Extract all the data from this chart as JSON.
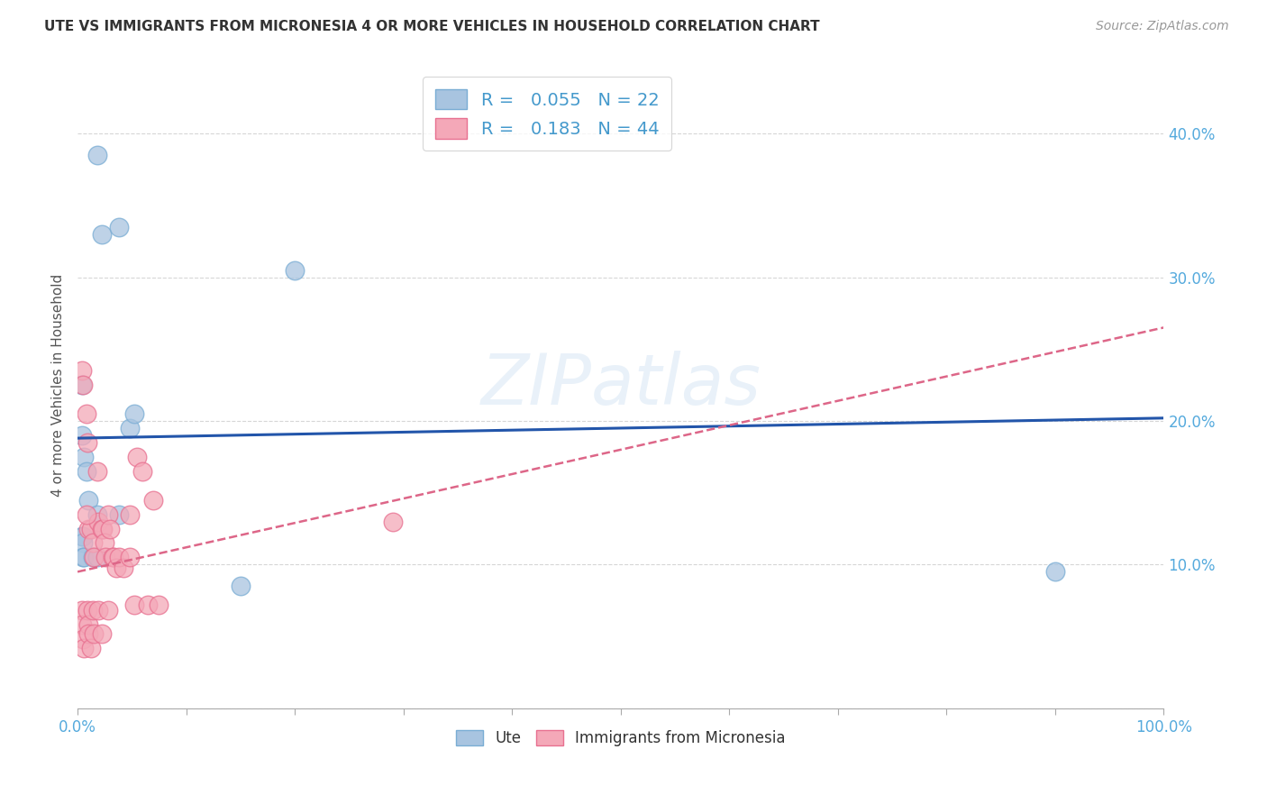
{
  "title": "UTE VS IMMIGRANTS FROM MICRONESIA 4 OR MORE VEHICLES IN HOUSEHOLD CORRELATION CHART",
  "source": "Source: ZipAtlas.com",
  "ylabel": "4 or more Vehicles in Household",
  "watermark": "ZIPatlas",
  "xlim": [
    0.0,
    1.0
  ],
  "ylim": [
    0.0,
    0.45
  ],
  "legend_ute_R": "0.055",
  "legend_ute_N": "22",
  "legend_micro_R": "0.183",
  "legend_micro_N": "44",
  "ute_color": "#a8c4e0",
  "ute_edge_color": "#7aadd4",
  "micro_color": "#f4a8b8",
  "micro_edge_color": "#e87090",
  "trend_ute_color": "#2255aa",
  "trend_micro_color": "#dd6688",
  "background_color": "#ffffff",
  "grid_color": "#cccccc",
  "title_color": "#333333",
  "axis_tick_color": "#55aadd",
  "ute_points_x": [
    0.018,
    0.022,
    0.038,
    0.004,
    0.004,
    0.006,
    0.008,
    0.01,
    0.018,
    0.038,
    0.004,
    0.005,
    0.005,
    0.005,
    0.006,
    0.014,
    0.018,
    0.048,
    0.052,
    0.2,
    0.9,
    0.15
  ],
  "ute_points_y": [
    0.385,
    0.33,
    0.335,
    0.225,
    0.19,
    0.175,
    0.165,
    0.145,
    0.135,
    0.135,
    0.12,
    0.12,
    0.115,
    0.105,
    0.105,
    0.105,
    0.105,
    0.195,
    0.205,
    0.305,
    0.095,
    0.085
  ],
  "micro_points_x": [
    0.004,
    0.005,
    0.008,
    0.009,
    0.01,
    0.012,
    0.014,
    0.015,
    0.018,
    0.019,
    0.022,
    0.023,
    0.025,
    0.026,
    0.028,
    0.03,
    0.032,
    0.033,
    0.036,
    0.038,
    0.042,
    0.048,
    0.052,
    0.055,
    0.06,
    0.065,
    0.07,
    0.075,
    0.004,
    0.004,
    0.005,
    0.006,
    0.009,
    0.01,
    0.01,
    0.012,
    0.014,
    0.015,
    0.019,
    0.022,
    0.028,
    0.29,
    0.048,
    0.008
  ],
  "micro_points_y": [
    0.235,
    0.225,
    0.205,
    0.185,
    0.125,
    0.125,
    0.115,
    0.105,
    0.165,
    0.13,
    0.125,
    0.125,
    0.115,
    0.105,
    0.135,
    0.125,
    0.105,
    0.105,
    0.098,
    0.105,
    0.098,
    0.105,
    0.072,
    0.175,
    0.165,
    0.072,
    0.145,
    0.072,
    0.068,
    0.058,
    0.048,
    0.042,
    0.068,
    0.058,
    0.052,
    0.042,
    0.068,
    0.052,
    0.068,
    0.052,
    0.068,
    0.13,
    0.135,
    0.135
  ],
  "ute_trend_x": [
    0.0,
    1.0
  ],
  "ute_trend_y": [
    0.188,
    0.202
  ],
  "micro_trend_x": [
    0.0,
    1.0
  ],
  "micro_trend_y": [
    0.095,
    0.265
  ]
}
